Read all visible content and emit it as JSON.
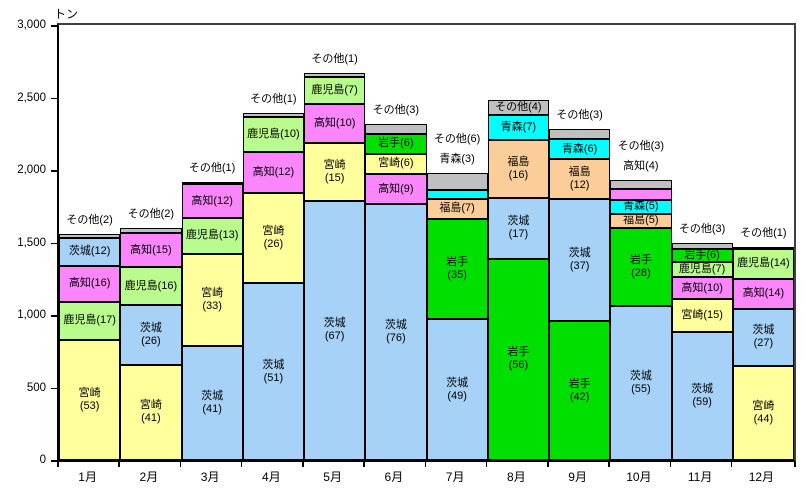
{
  "unit_label": "トン",
  "y_axis": {
    "tick_labels": [
      "0",
      "500",
      "1,000",
      "1,500",
      "2,000",
      "2,500",
      "3,000"
    ],
    "tick_values": [
      0,
      500,
      1000,
      1500,
      2000,
      2500,
      3000
    ]
  },
  "colors": {
    "宮崎": "#FFFF9C",
    "茨城": "#A6D2F8",
    "鹿児島": "#B9FC8D",
    "高知": "#FB86FB",
    "その他": "#C0C0C0",
    "岩手": "#00E000",
    "青森": "#00FFFF",
    "福島": "#FBCD98"
  },
  "chart_data": {
    "type": "bar",
    "stacked": true,
    "title": "",
    "ylabel": "トン",
    "ylim": [
      0,
      3000
    ],
    "grid": false,
    "legend": "none",
    "categories": [
      "1月",
      "2月",
      "3月",
      "4月",
      "5月",
      "6月",
      "7月",
      "8月",
      "9月",
      "10月",
      "11月",
      "12月"
    ],
    "note": "segments listed bottom-up; share_pct is the number shown in parentheses; label_style: two-line = name over (value), inline = single line inside segment, outside = label above bar",
    "months": [
      {
        "label": "1月",
        "total_tons_est": 1560,
        "segments": [
          {
            "name": "宮崎",
            "share_pct": 53,
            "label_style": "two-line"
          },
          {
            "name": "鹿児島",
            "share_pct": 17,
            "label_style": "inline"
          },
          {
            "name": "高知",
            "share_pct": 16,
            "label_style": "inline"
          },
          {
            "name": "茨城",
            "share_pct": 12,
            "label_style": "inline"
          },
          {
            "name": "その他",
            "share_pct": 2,
            "label_style": "outside"
          }
        ]
      },
      {
        "label": "2月",
        "total_tons_est": 1600,
        "segments": [
          {
            "name": "宮崎",
            "share_pct": 41,
            "label_style": "two-line"
          },
          {
            "name": "茨城",
            "share_pct": 26,
            "label_style": "two-line"
          },
          {
            "name": "鹿児島",
            "share_pct": 16,
            "label_style": "inline"
          },
          {
            "name": "高知",
            "share_pct": 15,
            "label_style": "inline"
          },
          {
            "name": "その他",
            "share_pct": 2,
            "label_style": "outside"
          }
        ]
      },
      {
        "label": "3月",
        "total_tons_est": 1920,
        "segments": [
          {
            "name": "茨城",
            "share_pct": 41,
            "label_style": "two-line"
          },
          {
            "name": "宮崎",
            "share_pct": 33,
            "label_style": "two-line"
          },
          {
            "name": "鹿児島",
            "share_pct": 13,
            "label_style": "inline"
          },
          {
            "name": "高知",
            "share_pct": 12,
            "label_style": "inline"
          },
          {
            "name": "その他",
            "share_pct": 1,
            "label_style": "outside"
          }
        ]
      },
      {
        "label": "4月",
        "total_tons_est": 2390,
        "segments": [
          {
            "name": "茨城",
            "share_pct": 51,
            "label_style": "two-line"
          },
          {
            "name": "宮崎",
            "share_pct": 26,
            "label_style": "two-line"
          },
          {
            "name": "高知",
            "share_pct": 12,
            "label_style": "inline"
          },
          {
            "name": "鹿児島",
            "share_pct": 10,
            "label_style": "inline"
          },
          {
            "name": "その他",
            "share_pct": 1,
            "label_style": "outside"
          }
        ]
      },
      {
        "label": "5月",
        "total_tons_est": 2670,
        "segments": [
          {
            "name": "茨城",
            "share_pct": 67,
            "label_style": "two-line"
          },
          {
            "name": "宮崎",
            "share_pct": 15,
            "label_style": "two-line"
          },
          {
            "name": "高知",
            "share_pct": 10,
            "label_style": "inline"
          },
          {
            "name": "鹿児島",
            "share_pct": 7,
            "label_style": "inline"
          },
          {
            "name": "その他",
            "share_pct": 1,
            "label_style": "outside"
          }
        ]
      },
      {
        "label": "6月",
        "total_tons_est": 2320,
        "segments": [
          {
            "name": "茨城",
            "share_pct": 76,
            "label_style": "two-line"
          },
          {
            "name": "高知",
            "share_pct": 9,
            "label_style": "inline"
          },
          {
            "name": "宮崎",
            "share_pct": 6,
            "label_style": "inline"
          },
          {
            "name": "岩手",
            "share_pct": 6,
            "label_style": "inline"
          },
          {
            "name": "その他",
            "share_pct": 3,
            "label_style": "outside"
          }
        ]
      },
      {
        "label": "7月",
        "total_tons_est": 1980,
        "segments": [
          {
            "name": "茨城",
            "share_pct": 49,
            "label_style": "two-line"
          },
          {
            "name": "岩手",
            "share_pct": 35,
            "label_style": "two-line"
          },
          {
            "name": "福島",
            "share_pct": 7,
            "label_style": "inline"
          },
          {
            "name": "青森",
            "share_pct": 3,
            "label_style": "outside"
          },
          {
            "name": "その他",
            "share_pct": 6,
            "label_style": "outside"
          }
        ]
      },
      {
        "label": "8月",
        "total_tons_est": 2480,
        "segments": [
          {
            "name": "岩手",
            "share_pct": 56,
            "label_style": "two-line"
          },
          {
            "name": "茨城",
            "share_pct": 17,
            "label_style": "two-line"
          },
          {
            "name": "福島",
            "share_pct": 16,
            "label_style": "two-line"
          },
          {
            "name": "青森",
            "share_pct": 7,
            "label_style": "inline"
          },
          {
            "name": "その他",
            "share_pct": 4,
            "label_style": "inline"
          }
        ]
      },
      {
        "label": "9月",
        "total_tons_est": 2280,
        "segments": [
          {
            "name": "岩手",
            "share_pct": 42,
            "label_style": "two-line"
          },
          {
            "name": "茨城",
            "share_pct": 37,
            "label_style": "two-line"
          },
          {
            "name": "福島",
            "share_pct": 12,
            "label_style": "two-line"
          },
          {
            "name": "青森",
            "share_pct": 6,
            "label_style": "inline"
          },
          {
            "name": "その他",
            "share_pct": 3,
            "label_style": "outside"
          }
        ]
      },
      {
        "label": "10月",
        "total_tons_est": 1930,
        "segments": [
          {
            "name": "茨城",
            "share_pct": 55,
            "label_style": "two-line"
          },
          {
            "name": "岩手",
            "share_pct": 28,
            "label_style": "two-line"
          },
          {
            "name": "福島",
            "share_pct": 5,
            "label_style": "inline"
          },
          {
            "name": "青森",
            "share_pct": 5,
            "label_style": "inline"
          },
          {
            "name": "高知",
            "share_pct": 4,
            "label_style": "outside"
          },
          {
            "name": "その他",
            "share_pct": 3,
            "label_style": "outside"
          }
        ]
      },
      {
        "label": "11月",
        "total_tons_est": 1500,
        "segments": [
          {
            "name": "茨城",
            "share_pct": 59,
            "label_style": "two-line"
          },
          {
            "name": "宮崎",
            "share_pct": 15,
            "label_style": "inline"
          },
          {
            "name": "高知",
            "share_pct": 10,
            "label_style": "inline"
          },
          {
            "name": "鹿児島",
            "share_pct": 7,
            "label_style": "inline"
          },
          {
            "name": "岩手",
            "share_pct": 6,
            "label_style": "inline"
          },
          {
            "name": "その他",
            "share_pct": 3,
            "label_style": "outside"
          }
        ]
      },
      {
        "label": "12月",
        "total_tons_est": 1470,
        "segments": [
          {
            "name": "宮崎",
            "share_pct": 44,
            "label_style": "two-line"
          },
          {
            "name": "茨城",
            "share_pct": 27,
            "label_style": "two-line"
          },
          {
            "name": "高知",
            "share_pct": 14,
            "label_style": "inline"
          },
          {
            "name": "鹿児島",
            "share_pct": 14,
            "label_style": "inline"
          },
          {
            "name": "その他",
            "share_pct": 1,
            "label_style": "outside"
          }
        ]
      }
    ]
  }
}
